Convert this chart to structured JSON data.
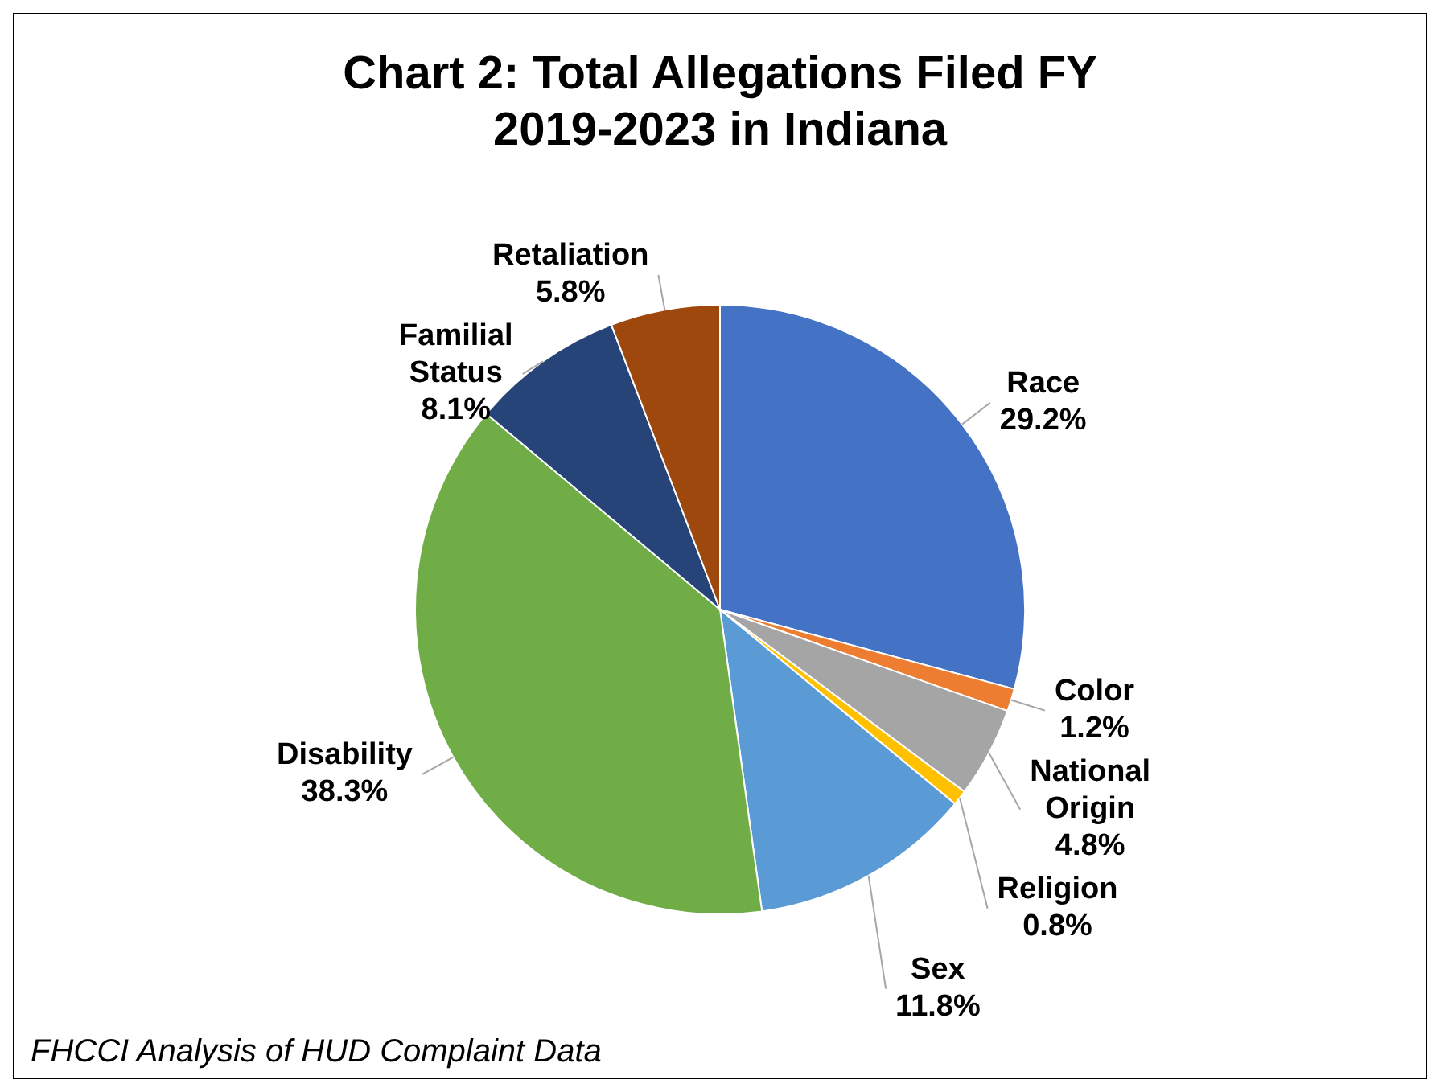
{
  "chart_data": {
    "type": "pie",
    "title": "Chart 2: Total Allegations Filed FY 2019-2023 in Indiana",
    "categories": [
      "Race",
      "Color",
      "National Origin",
      "Religion",
      "Sex",
      "Disability",
      "Familial Status",
      "Retaliation"
    ],
    "values": [
      29.2,
      1.2,
      4.8,
      0.8,
      11.8,
      38.3,
      8.1,
      5.8
    ],
    "value_labels": [
      "29.2%",
      "1.2%",
      "4.8%",
      "0.8%",
      "11.8%",
      "38.3%",
      "8.1%",
      "5.8%"
    ],
    "colors": [
      "#4472c4",
      "#ed7d31",
      "#a5a5a5",
      "#ffc000",
      "#5b9bd5",
      "#70ad47",
      "#264478",
      "#9e480e"
    ],
    "annotations": [
      "FHCCI Analysis of HUD Complaint Data"
    ],
    "legend": false
  }
}
